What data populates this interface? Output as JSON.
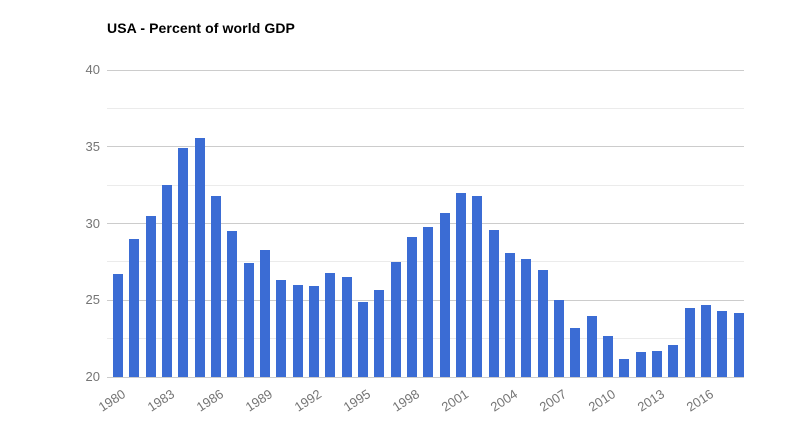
{
  "chart_data": {
    "type": "bar",
    "title": "USA - Percent of world GDP",
    "x": [
      1980,
      1981,
      1982,
      1983,
      1984,
      1985,
      1986,
      1987,
      1988,
      1989,
      1990,
      1991,
      1992,
      1993,
      1994,
      1995,
      1996,
      1997,
      1998,
      1999,
      2000,
      2001,
      2002,
      2003,
      2004,
      2005,
      2006,
      2007,
      2008,
      2009,
      2010,
      2011,
      2012,
      2013,
      2014,
      2015,
      2016,
      2017,
      2018
    ],
    "values": [
      26.7,
      29.0,
      30.5,
      32.5,
      34.9,
      35.6,
      31.8,
      29.5,
      27.4,
      28.3,
      26.3,
      26.0,
      25.9,
      26.8,
      26.5,
      24.9,
      25.7,
      27.5,
      29.1,
      29.8,
      30.7,
      32.0,
      31.8,
      29.6,
      28.1,
      27.7,
      27.0,
      25.0,
      23.2,
      24.0,
      22.7,
      21.2,
      21.6,
      21.7,
      22.1,
      24.5,
      24.7,
      24.3,
      24.2
    ],
    "xlabel": "",
    "ylabel": "",
    "ylim": [
      20,
      40
    ],
    "yticks": [
      20,
      25,
      30,
      35,
      40
    ],
    "ytick_labels": [
      "20",
      "25",
      "30",
      "35",
      "40"
    ],
    "minor_gridlines": [
      22.5,
      27.5,
      32.5,
      37.5
    ],
    "x_tick_labels": [
      "1980",
      "1983",
      "1986",
      "1989",
      "1992",
      "1995",
      "1998",
      "2001",
      "2004",
      "2007",
      "2010",
      "2013",
      "2016"
    ],
    "x_tick_step": 3,
    "grid": true,
    "legend": "none",
    "bar_color": "#3b6cd4",
    "major_grid_color": "#cccccc",
    "minor_grid_color": "#ebebeb",
    "label_color": "#757575",
    "title_color": "#000000",
    "background_color": "#ffffff"
  }
}
